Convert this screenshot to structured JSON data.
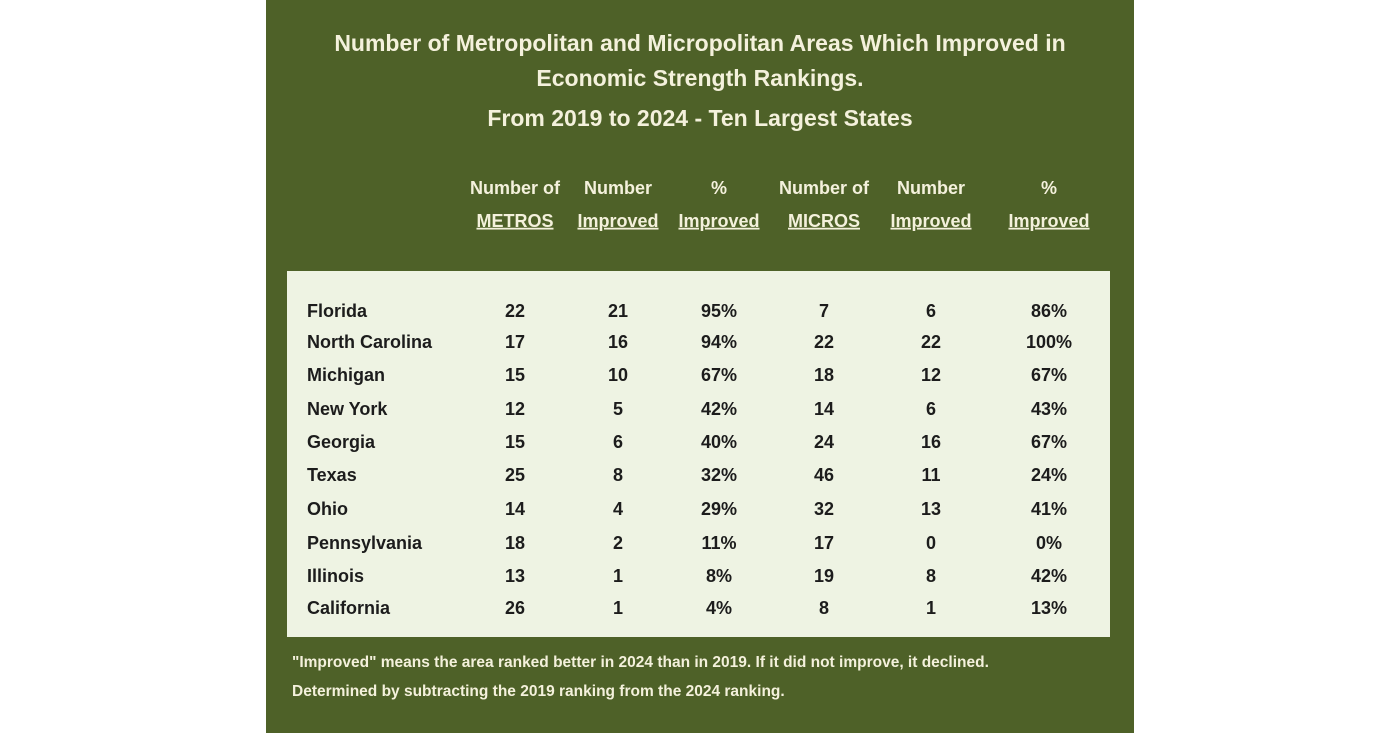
{
  "header": {
    "title_lines": [
      "Number of Metropolitan and Micropolitan Areas Which Improved in",
      "Economic Strength Rankings.",
      "From 2019 to 2024 - Ten Largest States"
    ]
  },
  "table": {
    "columns": [
      [
        "Number of",
        "METROS"
      ],
      [
        "Number",
        "Improved"
      ],
      [
        "%",
        "Improved"
      ],
      [
        "Number of",
        "MICROS"
      ],
      [
        "Number",
        "Improved"
      ],
      [
        "%",
        "Improved"
      ]
    ],
    "rows": [
      [
        "Florida",
        "22",
        "21",
        "95%",
        "7",
        "6",
        "86%"
      ],
      [
        "North Carolina",
        "17",
        "16",
        "94%",
        "22",
        "22",
        "100%"
      ],
      [
        "Michigan",
        "15",
        "10",
        "67%",
        "18",
        "12",
        "67%"
      ],
      [
        "New York",
        "12",
        "5",
        "42%",
        "14",
        "6",
        "43%"
      ],
      [
        "Georgia",
        "15",
        "6",
        "40%",
        "24",
        "16",
        "67%"
      ],
      [
        "Texas",
        "25",
        "8",
        "32%",
        "46",
        "11",
        "24%"
      ],
      [
        "Ohio",
        "14",
        "4",
        "29%",
        "32",
        "13",
        "41%"
      ],
      [
        "Pennsylvania",
        "18",
        "2",
        "11%",
        "17",
        "0",
        "0%"
      ],
      [
        "Illinois",
        "13",
        "1",
        "8%",
        "19",
        "8",
        "42%"
      ],
      [
        "California",
        "26",
        "1",
        "4%",
        "8",
        "1",
        "13%"
      ]
    ]
  },
  "footnote": {
    "lines": [
      "\"Improved\" means the area ranked better in 2024 than in 2019. If it did not improve, it declined.",
      "Determined by subtracting the 2019 ranking from the 2024 ranking."
    ]
  }
}
